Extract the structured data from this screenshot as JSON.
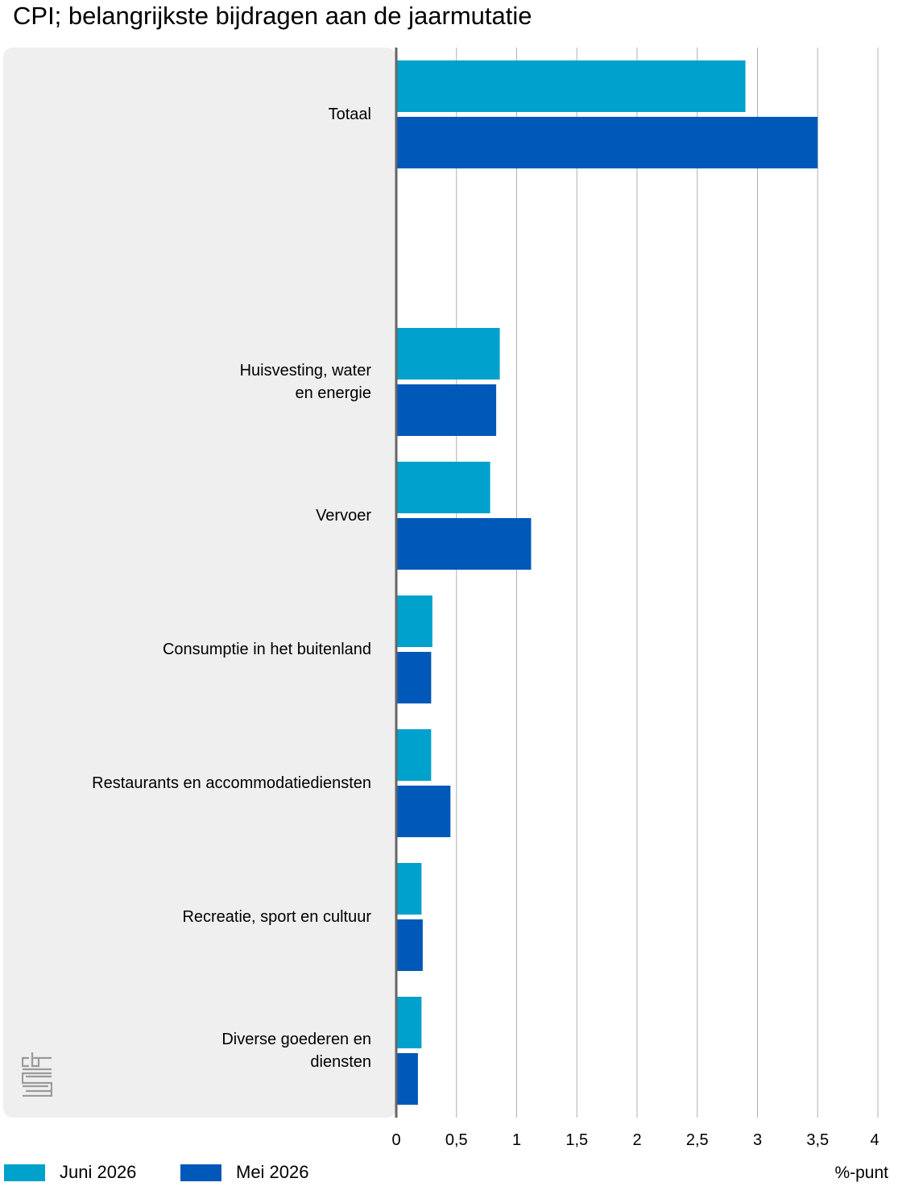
{
  "title": "CPI; belangrijkste bijdragen aan de jaarmutatie",
  "unit_label": "%-punt",
  "colors": {
    "juni": "#00A1CD",
    "mei": "#0058B8",
    "panel": "#EFEFEF",
    "grid": "#B0B0B0",
    "axis": "#666666"
  },
  "chart_data": {
    "type": "bar",
    "orientation": "horizontal",
    "categories": [
      [
        "Totaal"
      ],
      [],
      [
        "Huisvesting, water",
        "en energie"
      ],
      [
        "Vervoer"
      ],
      [
        "Consumptie in het buitenland"
      ],
      [
        "Restaurants en accommodatiediensten"
      ],
      [
        "Recreatie, sport en cultuur"
      ],
      [
        "Diverse goederen en",
        "diensten"
      ]
    ],
    "series": [
      {
        "name": "Juni 2026",
        "values": [
          2.9,
          null,
          0.86,
          0.78,
          0.3,
          0.29,
          0.21,
          0.21
        ]
      },
      {
        "name": "Mei 2026",
        "values": [
          3.5,
          null,
          0.83,
          1.12,
          0.29,
          0.45,
          0.22,
          0.18
        ]
      }
    ],
    "xlim": [
      0,
      4
    ],
    "xticks": [
      "0",
      "0,5",
      "1",
      "1,5",
      "2",
      "2,5",
      "3",
      "3,5",
      "4"
    ],
    "grid": true,
    "legend": "bottom-left"
  }
}
